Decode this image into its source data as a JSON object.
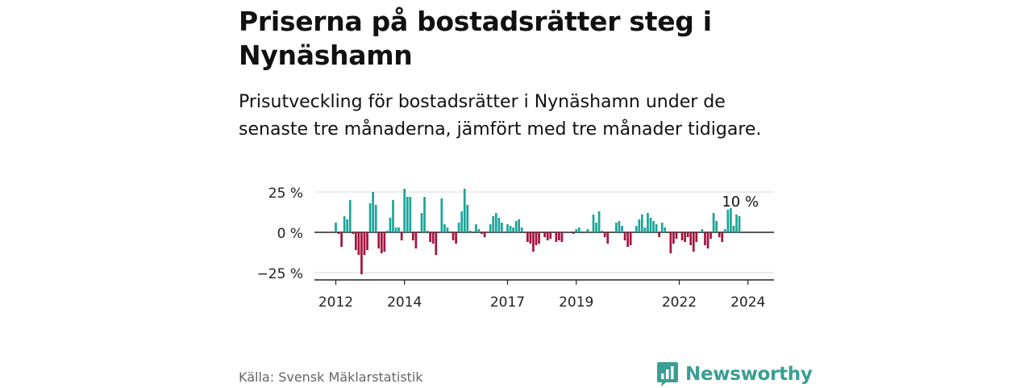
{
  "title": "Priserna på bostadsrätter steg i Nynäshamn",
  "subtitle": "Prisutveckling för bostadsrätter i Nynäshamn under de senaste tre månaderna, jämfört med tre månader tidigare.",
  "source": "Källa: Svensk Mäklarstatistik",
  "brand": "Newsworthy",
  "colors": {
    "positive": "#1aa59a",
    "negative": "#a6133f",
    "logo": "#3a9e95"
  },
  "chart_data": {
    "type": "bar",
    "title": "Priserna på bostadsrätter steg i Nynäshamn",
    "xlabel": "",
    "ylabel": "",
    "ylim": [
      -30,
      27
    ],
    "yticks": [
      25,
      0,
      -25
    ],
    "ytick_labels": [
      "25 %",
      "0 %",
      "−25 %"
    ],
    "xtick_labels": [
      "2012",
      "2014",
      "2017",
      "2019",
      "2022",
      "2024"
    ],
    "xtick_years": [
      2012,
      2014,
      2017,
      2019,
      2022,
      2024
    ],
    "start": "2012-01",
    "annotation": "10 %",
    "values": [
      6,
      -1,
      -9,
      10,
      8,
      20,
      -1,
      -11,
      -14,
      -26,
      -14,
      -11,
      18,
      25,
      17,
      -10,
      -13,
      -12,
      1,
      9,
      20,
      3,
      3,
      -5,
      27,
      22,
      22,
      -5,
      -10,
      0,
      12,
      22,
      1,
      -6,
      -7,
      -14,
      0,
      21,
      5,
      3,
      0,
      -5,
      -7,
      6,
      13,
      27,
      17,
      1,
      0,
      5,
      2,
      -1,
      -3,
      0,
      5,
      10,
      12,
      9,
      6,
      0,
      5,
      4,
      3,
      7,
      8,
      3,
      0,
      -6,
      -7,
      -12,
      -8,
      -7,
      0,
      -3,
      -5,
      -4,
      0,
      -6,
      -5,
      -6,
      0,
      0,
      0,
      -1,
      2,
      3,
      0,
      0,
      2,
      0,
      11,
      6,
      13,
      1,
      -3,
      -7,
      0,
      0,
      6,
      7,
      4,
      -5,
      -9,
      -8,
      0,
      4,
      8,
      11,
      3,
      12,
      9,
      7,
      5,
      -3,
      6,
      3,
      0,
      -13,
      -7,
      -4,
      0,
      -5,
      -6,
      -3,
      -8,
      -12,
      -6,
      0,
      2,
      -8,
      -10,
      -4,
      12,
      7,
      -3,
      -6,
      2,
      14,
      15,
      4,
      11,
      10
    ]
  }
}
